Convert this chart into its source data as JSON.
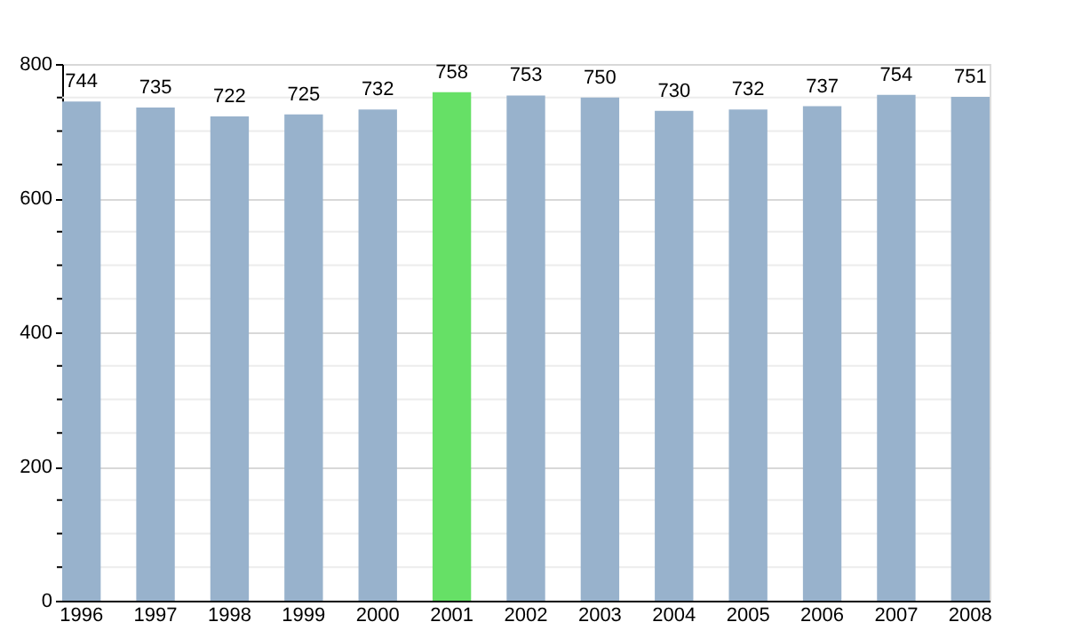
{
  "chart_data": {
    "type": "bar",
    "categories": [
      "1996",
      "1997",
      "1998",
      "1999",
      "2000",
      "2001",
      "2002",
      "2003",
      "2004",
      "2005",
      "2006",
      "2007",
      "2008"
    ],
    "values": [
      744,
      735,
      722,
      725,
      732,
      758,
      753,
      750,
      730,
      732,
      737,
      754,
      751
    ],
    "colors": [
      "#98b2cc",
      "#98b2cc",
      "#98b2cc",
      "#98b2cc",
      "#98b2cc",
      "#66e066",
      "#98b2cc",
      "#98b2cc",
      "#98b2cc",
      "#98b2cc",
      "#98b2cc",
      "#98b2cc",
      "#98b2cc"
    ],
    "ylim": [
      0,
      800
    ],
    "yticks": [
      0,
      {
        "value": 50,
        "label": null
      },
      {
        "value": 100,
        "label": null
      },
      {
        "value": 150,
        "label": null
      },
      200,
      {
        "value": 250,
        "label": null
      },
      {
        "value": 300,
        "label": null
      },
      {
        "value": 350,
        "label": null
      },
      400,
      {
        "value": 450,
        "label": null
      },
      {
        "value": 500,
        "label": null
      },
      {
        "value": 550,
        "label": null
      },
      600,
      {
        "value": 650,
        "label": null
      },
      {
        "value": 700,
        "label": null
      },
      {
        "value": 750,
        "label": null
      },
      800
    ],
    "grid": "y",
    "data_labels": true
  }
}
